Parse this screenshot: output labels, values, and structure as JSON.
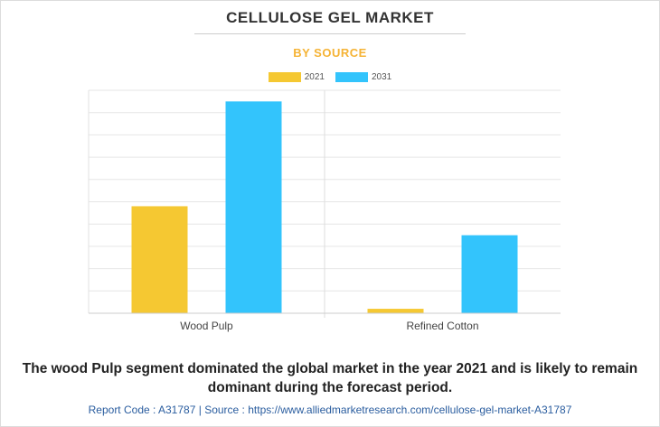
{
  "chart_data": {
    "type": "bar",
    "title": "CELLULOSE GEL MARKET",
    "subtitle": "BY SOURCE",
    "categories": [
      "Wood Pulp",
      "Refined Cotton"
    ],
    "series": [
      {
        "name": "2021",
        "color": "#f5c832",
        "values": [
          48,
          2
        ]
      },
      {
        "name": "2031",
        "color": "#33c4fc",
        "values": [
          95,
          35
        ]
      }
    ],
    "ylim": [
      0,
      100
    ],
    "grid": true,
    "legend": "top-center"
  },
  "caption": "The wood Pulp segment dominated the global market in the year 2021 and is likely to remain dominant during the forecast period.",
  "footer": {
    "report_code": "Report Code : A31787",
    "separator": "|",
    "source": "Source : https://www.alliedmarketresearch.com/cellulose-gel-market-A31787"
  }
}
